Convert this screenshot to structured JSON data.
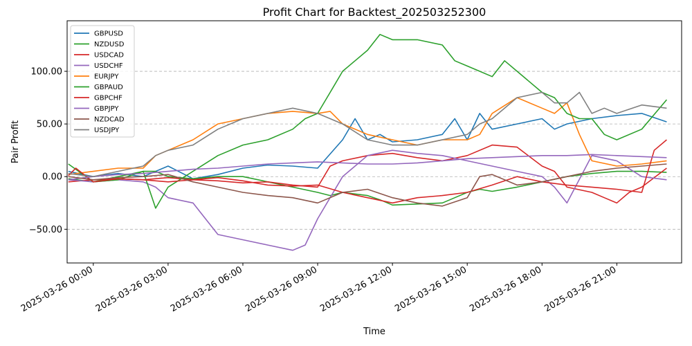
{
  "chart_data": {
    "type": "line",
    "title": "Profit Chart for Backtest_202503252300",
    "xlabel": "Time",
    "ylabel": "Pair Profit",
    "xlim": [
      -1.05,
      23.6
    ],
    "ylim": [
      -82,
      148
    ],
    "yticks": [
      -50,
      0,
      50,
      100
    ],
    "ytick_labels": [
      "−50.00",
      "0.00",
      "50.00",
      "100.00"
    ],
    "xticks": [
      0,
      3,
      6,
      9,
      12,
      15,
      18,
      21
    ],
    "xtick_labels": [
      "2025-03-26 00:00",
      "2025-03-26 03:00",
      "2025-03-26 06:00",
      "2025-03-26 09:00",
      "2025-03-26 12:00",
      "2025-03-26 15:00",
      "2025-03-26 18:00",
      "2025-03-26 21:00"
    ],
    "grid": "horizontal dashed",
    "legend_position": "top-left",
    "series": [
      {
        "name": "GBPUSD",
        "color": "#1f77b4",
        "x": [
          -1,
          0,
          1,
          2,
          3,
          4,
          5,
          6,
          7,
          8,
          9,
          10,
          10.5,
          11,
          11.5,
          12,
          13,
          14,
          14.5,
          15,
          15.5,
          16,
          17,
          18,
          18.5,
          19,
          20,
          21,
          22,
          23
        ],
        "y": [
          5,
          0,
          3,
          0,
          10,
          -2,
          2,
          8,
          11,
          10,
          8,
          35,
          55,
          35,
          40,
          33,
          35,
          40,
          55,
          35,
          60,
          45,
          50,
          55,
          45,
          50,
          55,
          58,
          60,
          52
        ]
      },
      {
        "name": "NZDUSD",
        "color": "#2ca02c",
        "x": [
          -1,
          0,
          1,
          2,
          2.5,
          3,
          4,
          5,
          6,
          7,
          8,
          9,
          9.5,
          10,
          11,
          11.5,
          12,
          13,
          14,
          14.5,
          15,
          15.5,
          16,
          17,
          18,
          19,
          20,
          21,
          22,
          23
        ],
        "y": [
          -2,
          -5,
          0,
          5,
          5,
          0,
          -2,
          0,
          0,
          -5,
          -10,
          -15,
          -18,
          -15,
          -18,
          -22,
          -27,
          -26,
          -25,
          -20,
          -15,
          -12,
          -14,
          -10,
          -5,
          0,
          3,
          5,
          5,
          4
        ]
      },
      {
        "name": "USDCAD",
        "color": "#d62728",
        "x": [
          -1,
          0,
          1,
          2,
          3,
          4,
          5,
          6,
          7,
          8,
          9,
          9.5,
          10,
          11,
          12,
          13,
          14,
          15,
          16,
          17,
          18,
          18.5,
          19,
          20,
          20.5,
          21,
          21.5,
          22,
          23
        ],
        "y": [
          -5,
          -3,
          -2,
          -3,
          -1,
          -3,
          -4,
          -6,
          -5,
          -8,
          -10,
          10,
          15,
          20,
          22,
          18,
          15,
          20,
          30,
          28,
          10,
          5,
          -10,
          -15,
          -20,
          -25,
          -15,
          -10,
          8
        ]
      },
      {
        "name": "USDCHF",
        "color": "#9467bd",
        "x": [
          -1,
          0,
          1,
          2,
          2.5,
          3,
          4,
          5,
          6,
          7,
          8,
          8.5,
          9,
          10,
          11,
          12,
          13,
          14,
          15,
          16,
          17,
          18,
          18.5,
          19,
          20,
          21,
          22,
          23
        ],
        "y": [
          -3,
          -5,
          -3,
          -5,
          -10,
          -20,
          -25,
          -55,
          -60,
          -65,
          -70,
          -65,
          -40,
          0,
          20,
          25,
          22,
          20,
          15,
          10,
          5,
          0,
          -10,
          -25,
          20,
          15,
          0,
          -3
        ]
      },
      {
        "name": "EURJPY",
        "color": "#ff7f0e",
        "x": [
          -1,
          0,
          1,
          2,
          2.5,
          3,
          4,
          5,
          6,
          7,
          8,
          9,
          9.5,
          10,
          11,
          12,
          13,
          14,
          15,
          15.5,
          16,
          17,
          18,
          18.5,
          19,
          19.5,
          20,
          21,
          22,
          23
        ],
        "y": [
          2,
          5,
          8,
          8,
          20,
          25,
          35,
          50,
          55,
          60,
          62,
          60,
          62,
          50,
          40,
          35,
          30,
          35,
          35,
          40,
          60,
          75,
          65,
          60,
          70,
          40,
          15,
          10,
          12,
          15
        ]
      },
      {
        "name": "GBPAUD",
        "color": "#2ca02c",
        "x": [
          -1,
          0,
          1,
          2,
          2.5,
          3,
          4,
          5,
          6,
          7,
          8,
          8.5,
          9,
          9.5,
          10,
          10.5,
          11,
          11.5,
          12,
          13,
          14,
          14.5,
          15,
          15.5,
          16,
          16.5,
          17,
          18,
          18.5,
          19,
          19.5,
          20,
          20.5,
          21,
          22,
          23
        ],
        "y": [
          12,
          -5,
          -3,
          5,
          -30,
          -10,
          5,
          20,
          30,
          35,
          45,
          55,
          60,
          80,
          100,
          110,
          120,
          135,
          130,
          130,
          125,
          110,
          105,
          100,
          95,
          110,
          100,
          80,
          75,
          60,
          55,
          55,
          40,
          35,
          45,
          73
        ]
      },
      {
        "name": "GBPCHF",
        "color": "#d62728",
        "x": [
          -1,
          -0.7,
          0,
          1,
          2,
          3,
          4,
          5,
          6,
          7,
          8,
          9,
          10,
          11,
          12,
          13,
          14,
          15,
          16,
          17,
          18,
          19,
          20,
          21,
          22,
          22.5,
          23
        ],
        "y": [
          1,
          8,
          -5,
          -2,
          -3,
          -5,
          -3,
          -1,
          -4,
          -8,
          -9,
          -8,
          -15,
          -20,
          -25,
          -20,
          -18,
          -15,
          -8,
          0,
          -5,
          -8,
          -10,
          -12,
          -15,
          25,
          35
        ]
      },
      {
        "name": "GBPJPY",
        "color": "#9467bd",
        "x": [
          -1,
          0,
          1,
          2,
          3,
          4,
          5,
          6,
          7,
          8,
          9,
          10,
          11,
          12,
          13,
          14,
          15,
          16,
          17,
          18,
          19,
          20,
          21,
          22,
          23
        ],
        "y": [
          -3,
          0,
          2,
          3,
          5,
          7,
          8,
          10,
          12,
          13,
          14,
          13,
          12,
          12,
          13,
          15,
          17,
          18,
          19,
          20,
          20,
          21,
          20,
          19,
          18
        ]
      },
      {
        "name": "NZDCAD",
        "color": "#8c564b",
        "x": [
          -1,
          0,
          1,
          2,
          3,
          4,
          5,
          6,
          7,
          8,
          9,
          10,
          11,
          12,
          13,
          14,
          15,
          15.5,
          16,
          17,
          18,
          19,
          20,
          21,
          22,
          23
        ],
        "y": [
          0,
          -3,
          -1,
          0,
          2,
          -5,
          -10,
          -15,
          -18,
          -20,
          -25,
          -15,
          -12,
          -20,
          -25,
          -28,
          -20,
          0,
          2,
          -8,
          -5,
          0,
          5,
          8,
          10,
          12
        ]
      },
      {
        "name": "USDJPY",
        "color": "#7f7f7f",
        "x": [
          -1,
          0,
          1,
          2,
          2.5,
          3,
          4,
          5,
          6,
          7,
          8,
          9,
          10,
          11,
          12,
          13,
          14,
          15,
          15.5,
          16,
          17,
          18,
          18.5,
          19,
          19.5,
          20,
          20.5,
          21,
          22,
          23
        ],
        "y": [
          3,
          0,
          5,
          10,
          20,
          25,
          30,
          45,
          55,
          60,
          65,
          60,
          50,
          35,
          30,
          30,
          35,
          40,
          50,
          55,
          75,
          80,
          70,
          70,
          80,
          60,
          65,
          60,
          68,
          65
        ]
      }
    ]
  }
}
